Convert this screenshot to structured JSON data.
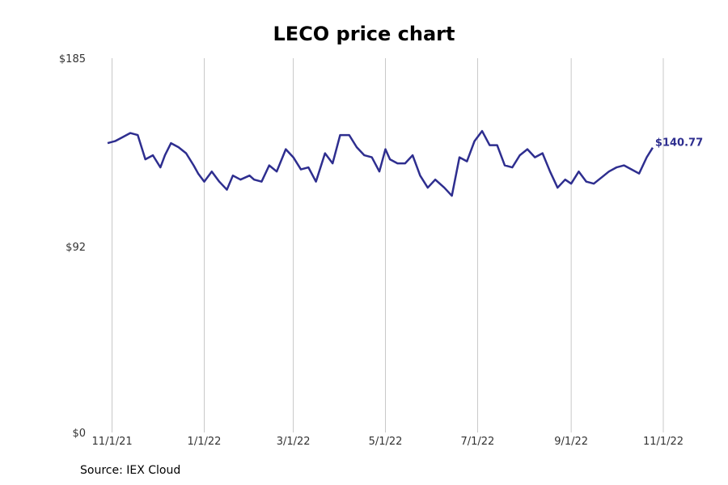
{
  "title": "LECO price chart",
  "source": "Source: IEX Cloud",
  "colors": {
    "line": "#2e2e8f",
    "grid": "#bbbbbb"
  },
  "chart_data": {
    "type": "line",
    "title": "LECO price chart",
    "xlabel": "",
    "ylabel": "",
    "y_ticks": [
      {
        "label": "$185",
        "value": 185
      },
      {
        "label": "$92",
        "value": 92
      },
      {
        "label": "$0",
        "value": 0
      }
    ],
    "ylim": [
      0,
      185
    ],
    "x_ticks": [
      "11/1/21",
      "1/1/22",
      "3/1/22",
      "5/1/22",
      "7/1/22",
      "9/1/22",
      "11/1/22"
    ],
    "xlim": [
      "2021-10-29",
      "2022-11-01"
    ],
    "grid": "vertical",
    "end_label": "$140.77",
    "series": [
      {
        "dates": [
          "2021-10-29",
          "2021-11-03",
          "2021-11-08",
          "2021-11-13",
          "2021-11-18",
          "2021-11-23",
          "2021-11-28",
          "2021-12-03",
          "2021-12-06",
          "2021-12-10",
          "2021-12-15",
          "2021-12-20",
          "2021-12-25",
          "2021-12-28",
          "2022-01-01",
          "2022-01-06",
          "2022-01-11",
          "2022-01-16",
          "2022-01-20",
          "2022-01-25",
          "2022-01-31",
          "2022-02-03",
          "2022-02-08",
          "2022-02-13",
          "2022-02-18",
          "2022-02-24",
          "2022-03-01",
          "2022-03-06",
          "2022-03-11",
          "2022-03-16",
          "2022-03-22",
          "2022-03-27",
          "2022-04-01",
          "2022-04-07",
          "2022-04-12",
          "2022-04-17",
          "2022-04-22",
          "2022-04-27",
          "2022-05-01",
          "2022-05-04",
          "2022-05-09",
          "2022-05-14",
          "2022-05-19",
          "2022-05-24",
          "2022-05-29",
          "2022-06-03",
          "2022-06-09",
          "2022-06-14",
          "2022-06-19",
          "2022-06-24",
          "2022-06-29",
          "2022-07-04",
          "2022-07-09",
          "2022-07-14",
          "2022-07-19",
          "2022-07-24",
          "2022-07-29",
          "2022-08-03",
          "2022-08-08",
          "2022-08-13",
          "2022-08-18",
          "2022-08-23",
          "2022-08-28",
          "2022-09-01",
          "2022-09-06",
          "2022-09-11",
          "2022-09-16",
          "2022-09-21",
          "2022-09-26",
          "2022-10-01",
          "2022-10-06",
          "2022-10-11",
          "2022-10-16",
          "2022-10-21",
          "2022-10-25"
        ],
        "values": [
          143,
          144,
          146,
          148,
          147,
          135,
          137,
          131,
          137,
          143,
          141,
          138,
          132,
          128,
          124,
          129,
          124,
          120,
          127,
          125,
          127,
          125,
          124,
          132,
          129,
          140,
          136,
          130,
          131,
          124,
          138,
          133,
          147,
          147,
          141,
          137,
          136,
          129,
          140,
          135,
          133,
          133,
          137,
          127,
          121,
          125,
          121,
          117,
          136,
          134,
          144,
          149,
          142,
          142,
          132,
          131,
          137,
          140,
          136,
          138,
          129,
          121,
          125,
          123,
          129,
          124,
          123,
          126,
          129,
          131,
          132,
          130,
          128,
          136,
          140.77
        ]
      }
    ]
  }
}
